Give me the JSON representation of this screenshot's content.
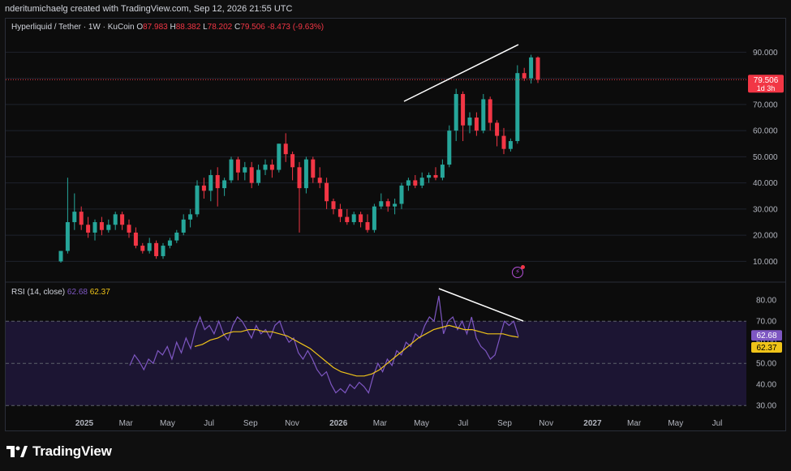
{
  "header": {
    "attribution": "nderitumichaelg created with TradingView.com, Sep 12, 2026 21:55 UTC"
  },
  "legend": {
    "symbol": "Hyperliquid / Tether · 1W · KuCoin",
    "o_label": "O",
    "o_value": "87.983",
    "h_label": "H",
    "h_value": "88.382",
    "l_label": "L",
    "l_value": "78.202",
    "c_label": "C",
    "c_value": "79.506",
    "change": "-8.473 (-9.63%)"
  },
  "rsi_legend": {
    "title": "RSI (14, close)",
    "rsi_value": "62.68",
    "ma_value": "62.37"
  },
  "price_badge": {
    "price": "79.506",
    "countdown": "1d 3h"
  },
  "rsi_badges": {
    "rsi": "62.68",
    "ma": "62.37"
  },
  "footer": {
    "brand": "TradingView"
  },
  "colors": {
    "up": "#26a69a",
    "down": "#f23645",
    "rsi_line": "#7e57c2",
    "rsi_ma": "#f0c419",
    "rsi_band": "#1c1533",
    "grid": "#1e222d",
    "text": "#b2b5be"
  },
  "chart_data": [
    {
      "type": "candlestick",
      "title": "Hyperliquid / Tether · 1W · KuCoin",
      "price_axis_ticks": [
        "10.000",
        "20.000",
        "30.000",
        "40.000",
        "50.000",
        "60.000",
        "70.000",
        "80.000",
        "90.000"
      ],
      "ylim": [
        3,
        96
      ],
      "time_axis_labels": [
        "2025",
        "Mar",
        "May",
        "Jul",
        "Sep",
        "Nov",
        "2026",
        "Mar",
        "May",
        "Jul",
        "Sep",
        "Nov",
        "2027",
        "Mar",
        "May",
        "Jul"
      ],
      "last_close": 79.506,
      "candles": [
        {
          "o": 10,
          "h": 14,
          "l": 9.5,
          "c": 14
        },
        {
          "o": 14,
          "h": 42,
          "l": 13,
          "c": 25
        },
        {
          "o": 25,
          "h": 36,
          "l": 22,
          "c": 29
        },
        {
          "o": 29,
          "h": 31,
          "l": 22,
          "c": 24
        },
        {
          "o": 24,
          "h": 27,
          "l": 19,
          "c": 21
        },
        {
          "o": 21,
          "h": 26,
          "l": 18,
          "c": 25
        },
        {
          "o": 25,
          "h": 27,
          "l": 20,
          "c": 22
        },
        {
          "o": 22,
          "h": 26,
          "l": 21,
          "c": 24
        },
        {
          "o": 24,
          "h": 29,
          "l": 22,
          "c": 28
        },
        {
          "o": 28,
          "h": 29,
          "l": 22,
          "c": 24
        },
        {
          "o": 24,
          "h": 26,
          "l": 19,
          "c": 21
        },
        {
          "o": 21,
          "h": 23,
          "l": 15,
          "c": 16
        },
        {
          "o": 16,
          "h": 17,
          "l": 13,
          "c": 14
        },
        {
          "o": 14,
          "h": 19,
          "l": 13,
          "c": 17
        },
        {
          "o": 17,
          "h": 18,
          "l": 11,
          "c": 12
        },
        {
          "o": 12,
          "h": 17,
          "l": 11,
          "c": 16
        },
        {
          "o": 16,
          "h": 19,
          "l": 15,
          "c": 18
        },
        {
          "o": 18,
          "h": 22,
          "l": 17,
          "c": 21
        },
        {
          "o": 21,
          "h": 28,
          "l": 20,
          "c": 26
        },
        {
          "o": 26,
          "h": 30,
          "l": 23,
          "c": 28
        },
        {
          "o": 28,
          "h": 41,
          "l": 27,
          "c": 39
        },
        {
          "o": 39,
          "h": 42,
          "l": 34,
          "c": 37
        },
        {
          "o": 37,
          "h": 45,
          "l": 33,
          "c": 43
        },
        {
          "o": 43,
          "h": 46,
          "l": 31,
          "c": 38
        },
        {
          "o": 38,
          "h": 42,
          "l": 35,
          "c": 41
        },
        {
          "o": 41,
          "h": 50,
          "l": 40,
          "c": 49
        },
        {
          "o": 49,
          "h": 50,
          "l": 41,
          "c": 44
        },
        {
          "o": 44,
          "h": 48,
          "l": 41,
          "c": 46
        },
        {
          "o": 46,
          "h": 48,
          "l": 38,
          "c": 40
        },
        {
          "o": 40,
          "h": 47,
          "l": 39,
          "c": 45
        },
        {
          "o": 45,
          "h": 49,
          "l": 43,
          "c": 47
        },
        {
          "o": 47,
          "h": 49,
          "l": 42,
          "c": 45
        },
        {
          "o": 45,
          "h": 55,
          "l": 44,
          "c": 55
        },
        {
          "o": 55,
          "h": 59,
          "l": 48,
          "c": 51
        },
        {
          "o": 51,
          "h": 52,
          "l": 41,
          "c": 46
        },
        {
          "o": 46,
          "h": 48,
          "l": 21,
          "c": 38
        },
        {
          "o": 38,
          "h": 50,
          "l": 36,
          "c": 49
        },
        {
          "o": 49,
          "h": 50,
          "l": 40,
          "c": 42
        },
        {
          "o": 42,
          "h": 46,
          "l": 38,
          "c": 40
        },
        {
          "o": 40,
          "h": 42,
          "l": 30,
          "c": 33
        },
        {
          "o": 33,
          "h": 34,
          "l": 28,
          "c": 30
        },
        {
          "o": 30,
          "h": 32,
          "l": 25,
          "c": 27
        },
        {
          "o": 27,
          "h": 30,
          "l": 24,
          "c": 25
        },
        {
          "o": 25,
          "h": 29,
          "l": 24,
          "c": 28
        },
        {
          "o": 28,
          "h": 29,
          "l": 23,
          "c": 25
        },
        {
          "o": 25,
          "h": 28,
          "l": 21,
          "c": 22
        },
        {
          "o": 22,
          "h": 32,
          "l": 21,
          "c": 31
        },
        {
          "o": 31,
          "h": 36,
          "l": 30,
          "c": 33
        },
        {
          "o": 33,
          "h": 34,
          "l": 29,
          "c": 31
        },
        {
          "o": 31,
          "h": 34,
          "l": 28,
          "c": 32
        },
        {
          "o": 32,
          "h": 40,
          "l": 30,
          "c": 39
        },
        {
          "o": 39,
          "h": 42,
          "l": 37,
          "c": 41
        },
        {
          "o": 41,
          "h": 43,
          "l": 38,
          "c": 39
        },
        {
          "o": 39,
          "h": 44,
          "l": 38,
          "c": 42
        },
        {
          "o": 42,
          "h": 44,
          "l": 40,
          "c": 43
        },
        {
          "o": 43,
          "h": 46,
          "l": 41,
          "c": 42
        },
        {
          "o": 42,
          "h": 49,
          "l": 41,
          "c": 47
        },
        {
          "o": 47,
          "h": 62,
          "l": 46,
          "c": 60
        },
        {
          "o": 60,
          "h": 76,
          "l": 56,
          "c": 74
        },
        {
          "o": 74,
          "h": 75,
          "l": 56,
          "c": 62
        },
        {
          "o": 62,
          "h": 67,
          "l": 59,
          "c": 65
        },
        {
          "o": 65,
          "h": 67,
          "l": 58,
          "c": 60
        },
        {
          "o": 60,
          "h": 74,
          "l": 59,
          "c": 72
        },
        {
          "o": 72,
          "h": 73,
          "l": 60,
          "c": 63
        },
        {
          "o": 63,
          "h": 64,
          "l": 54,
          "c": 58
        },
        {
          "o": 58,
          "h": 61,
          "l": 51,
          "c": 53
        },
        {
          "o": 53,
          "h": 57,
          "l": 52,
          "c": 56
        },
        {
          "o": 56,
          "h": 85,
          "l": 55,
          "c": 82
        },
        {
          "o": 82,
          "h": 84,
          "l": 79,
          "c": 80
        },
        {
          "o": 80,
          "h": 89,
          "l": 78,
          "c": 88
        },
        {
          "o": 87.983,
          "h": 88.382,
          "l": 78.202,
          "c": 79.506
        }
      ]
    },
    {
      "type": "line",
      "title": "RSI (14, close)",
      "axis_ticks": [
        "30.00",
        "40.00",
        "50.00",
        "60.00",
        "70.00",
        "80.00"
      ],
      "ylim": [
        27,
        87
      ],
      "bands": [
        30,
        50,
        70
      ],
      "series": [
        {
          "name": "RSI",
          "values": [
            49,
            54,
            51,
            47,
            52,
            50,
            56,
            54,
            58,
            52,
            60,
            55,
            62,
            57,
            66,
            72,
            66,
            68,
            64,
            70,
            64,
            61,
            68,
            72,
            70,
            66,
            62,
            68,
            64,
            66,
            62,
            68,
            70,
            64,
            60,
            62,
            55,
            52,
            56,
            52,
            47,
            44,
            46,
            40,
            36,
            38,
            36,
            40,
            38,
            41,
            39,
            36,
            44,
            50,
            46,
            52,
            49,
            56,
            54,
            60,
            58,
            64,
            62,
            68,
            72,
            70,
            82,
            64,
            70,
            72,
            66,
            70,
            64,
            72,
            62,
            58,
            56,
            52,
            54,
            62,
            70,
            68,
            70,
            62.68
          ]
        },
        {
          "name": "RSI-based MA",
          "values": [
            58,
            59,
            61,
            62,
            64,
            65,
            65,
            66,
            66,
            65,
            65,
            64,
            63,
            61,
            59,
            57,
            54,
            51,
            48,
            46,
            45,
            44,
            44,
            45,
            47,
            50,
            53,
            56,
            59,
            62,
            64,
            66,
            67,
            68,
            67,
            66,
            66,
            65,
            64,
            64,
            64,
            63,
            62.37
          ]
        }
      ]
    }
  ]
}
